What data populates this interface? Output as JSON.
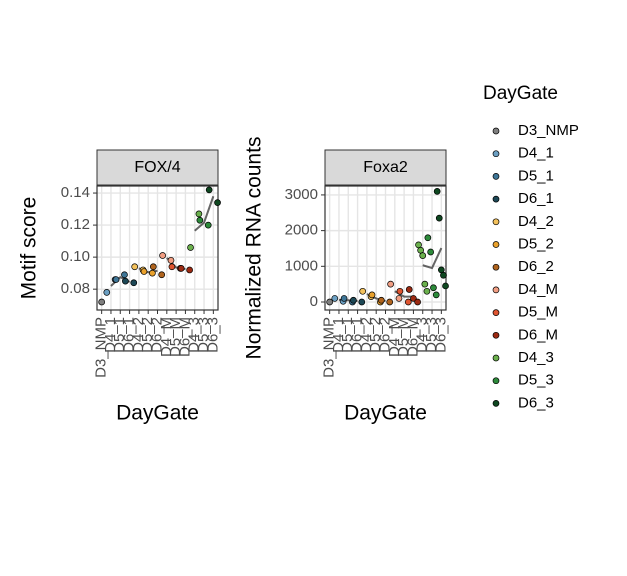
{
  "chart_data": [
    {
      "type": "scatter",
      "title": "FOX/4",
      "ylabel": "Motif score",
      "xlabel": "DayGate",
      "categories": [
        "D3_NMP",
        "D4_1",
        "D5_1",
        "D6_1",
        "D4_2",
        "D5_2",
        "D6_2",
        "D4_M",
        "D5_M",
        "D6_M",
        "D4_3",
        "D5_3",
        "D6_3"
      ],
      "ylim": [
        0.067,
        0.1444
      ],
      "yticks": [
        0.08,
        {
          "value": 0.1,
          "label": "0.10"
        },
        0.12,
        0.14
      ],
      "grid": true,
      "legend_title": "DayGate",
      "legend": "right",
      "series": [
        {
          "name": "D3_NMP",
          "color": "#7f7f7f",
          "values": [
            0.072
          ]
        },
        {
          "name": "D4_1",
          "color": "#6b9fc2",
          "values": [
            0.078,
            0.086
          ]
        },
        {
          "name": "D5_1",
          "color": "#3e7596",
          "values": [
            0.086,
            0.089
          ]
        },
        {
          "name": "D6_1",
          "color": "#1d4856",
          "values": [
            0.085,
            0.084
          ]
        },
        {
          "name": "D4_2",
          "color": "#f3c15c",
          "values": [
            0.094,
            0.092
          ]
        },
        {
          "name": "D5_2",
          "color": "#e9a12c",
          "values": [
            0.091,
            0.09
          ]
        },
        {
          "name": "D6_2",
          "color": "#b0641e",
          "values": [
            0.094,
            0.089
          ]
        },
        {
          "name": "D4_M",
          "color": "#f19e83",
          "values": [
            0.101,
            0.098
          ]
        },
        {
          "name": "D5_M",
          "color": "#df5530",
          "values": [
            0.094,
            0.093
          ]
        },
        {
          "name": "D6_M",
          "color": "#9c2a12",
          "values": [
            0.093,
            0.092
          ]
        },
        {
          "name": "D4_3",
          "color": "#6bb04d",
          "values": [
            0.106,
            0.127
          ]
        },
        {
          "name": "D5_3",
          "color": "#2c8a3a",
          "values": [
            0.123,
            0.12
          ]
        },
        {
          "name": "D6_3",
          "color": "#0e4720",
          "values": [
            0.142,
            0.134
          ]
        }
      ]
    },
    {
      "type": "scatter",
      "title": "Foxa2",
      "ylabel": "Normalized RNA counts",
      "xlabel": "DayGate",
      "categories": [
        "D3_NMP",
        "D4_1",
        "D5_1",
        "D6_1",
        "D4_2",
        "D5_2",
        "D6_2",
        "D4_M",
        "D5_M",
        "D6_M",
        "D4_3",
        "D5_3",
        "D6_3"
      ],
      "ylim": [
        -224,
        3250
      ],
      "yticks": [
        0,
        1000,
        2000,
        3000
      ],
      "grid": true,
      "series": [
        {
          "name": "D3_NMP",
          "color": "#7f7f7f",
          "values": [
            0
          ]
        },
        {
          "name": "D4_1",
          "color": "#6b9fc2",
          "values": [
            100,
            20
          ]
        },
        {
          "name": "D5_1",
          "color": "#3e7596",
          "values": [
            100,
            0
          ]
        },
        {
          "name": "D6_1",
          "color": "#1d4856",
          "values": [
            50,
            0
          ]
        },
        {
          "name": "D4_2",
          "color": "#f3c15c",
          "values": [
            300,
            150
          ]
        },
        {
          "name": "D5_2",
          "color": "#e9a12c",
          "values": [
            200,
            0
          ]
        },
        {
          "name": "D6_2",
          "color": "#b0641e",
          "values": [
            50,
            0
          ]
        },
        {
          "name": "D4_M",
          "color": "#f19e83",
          "values": [
            500,
            100
          ]
        },
        {
          "name": "D5_M",
          "color": "#df5530",
          "values": [
            300,
            0
          ]
        },
        {
          "name": "D6_M",
          "color": "#9c2a12",
          "values": [
            350,
            100,
            0
          ]
        },
        {
          "name": "D4_3",
          "color": "#6bb04d",
          "values": [
            1600,
            1450,
            1300,
            500,
            300
          ]
        },
        {
          "name": "D5_3",
          "color": "#2c8a3a",
          "values": [
            1800,
            1400,
            400,
            200
          ]
        },
        {
          "name": "D6_3",
          "color": "#0e4720",
          "values": [
            3100,
            2350,
            900,
            750,
            450
          ]
        }
      ]
    }
  ]
}
